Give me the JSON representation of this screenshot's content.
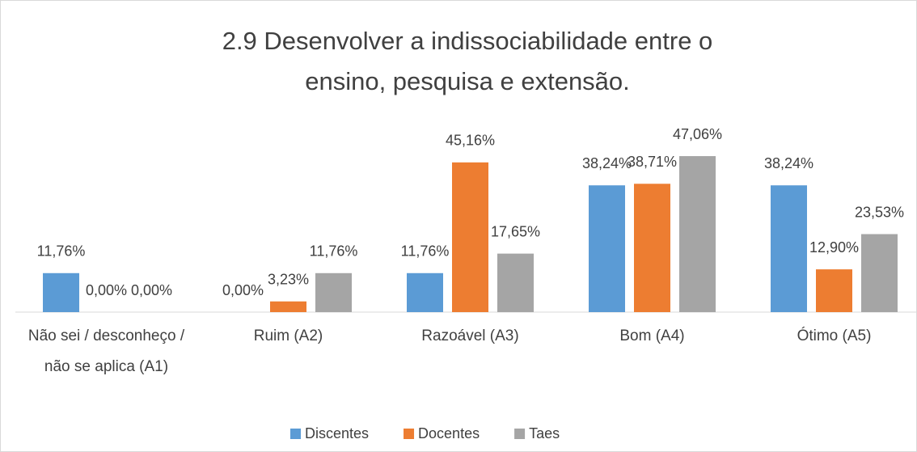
{
  "chart_data": {
    "type": "bar",
    "title": "2.9 Desenvolver a indissociabilidade entre o ensino, pesquisa e extensão.",
    "categories": [
      "Não sei / desconheço / não se aplica (A1)",
      "Ruim (A2)",
      "Razoável (A3)",
      "Bom (A4)",
      "Ótimo (A5)"
    ],
    "series": [
      {
        "name": "Discentes",
        "color": "#5b9bd5",
        "values": [
          11.76,
          0,
          11.76,
          38.24,
          38.24
        ],
        "value_labels": [
          "11,76%",
          "0,00%",
          "11,76%",
          "38,24%",
          "38,24%"
        ]
      },
      {
        "name": "Docentes",
        "color": "#ed7d31",
        "values": [
          0,
          3.23,
          45.16,
          38.71,
          12.9
        ],
        "value_labels": [
          "0,00%",
          "3,23%",
          "45,16%",
          "38,71%",
          "12,90%"
        ]
      },
      {
        "name": "Taes",
        "color": "#a5a5a5",
        "values": [
          0,
          11.76,
          17.65,
          47.06,
          23.53
        ],
        "value_labels": [
          "0,00%",
          "11,76%",
          "17,65%",
          "47,06%",
          "23,53%"
        ]
      }
    ],
    "legend": "bottom"
  }
}
